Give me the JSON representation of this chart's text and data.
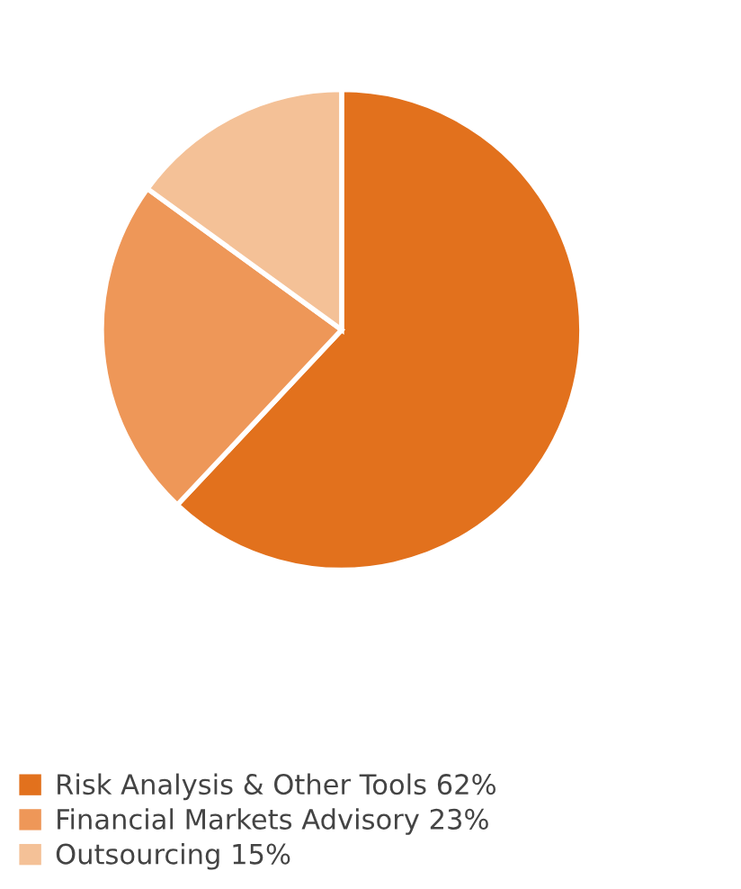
{
  "chart_data": {
    "type": "pie",
    "categories": [
      "Risk Analysis & Other Tools",
      "Financial Markets Advisory",
      "Outsourcing"
    ],
    "values": [
      62,
      23,
      15
    ],
    "value_labels": [
      "62%",
      "23%",
      "15%"
    ],
    "colors": [
      "#e2711d",
      "#ee9758",
      "#f4c197"
    ],
    "legend": "bottom"
  }
}
